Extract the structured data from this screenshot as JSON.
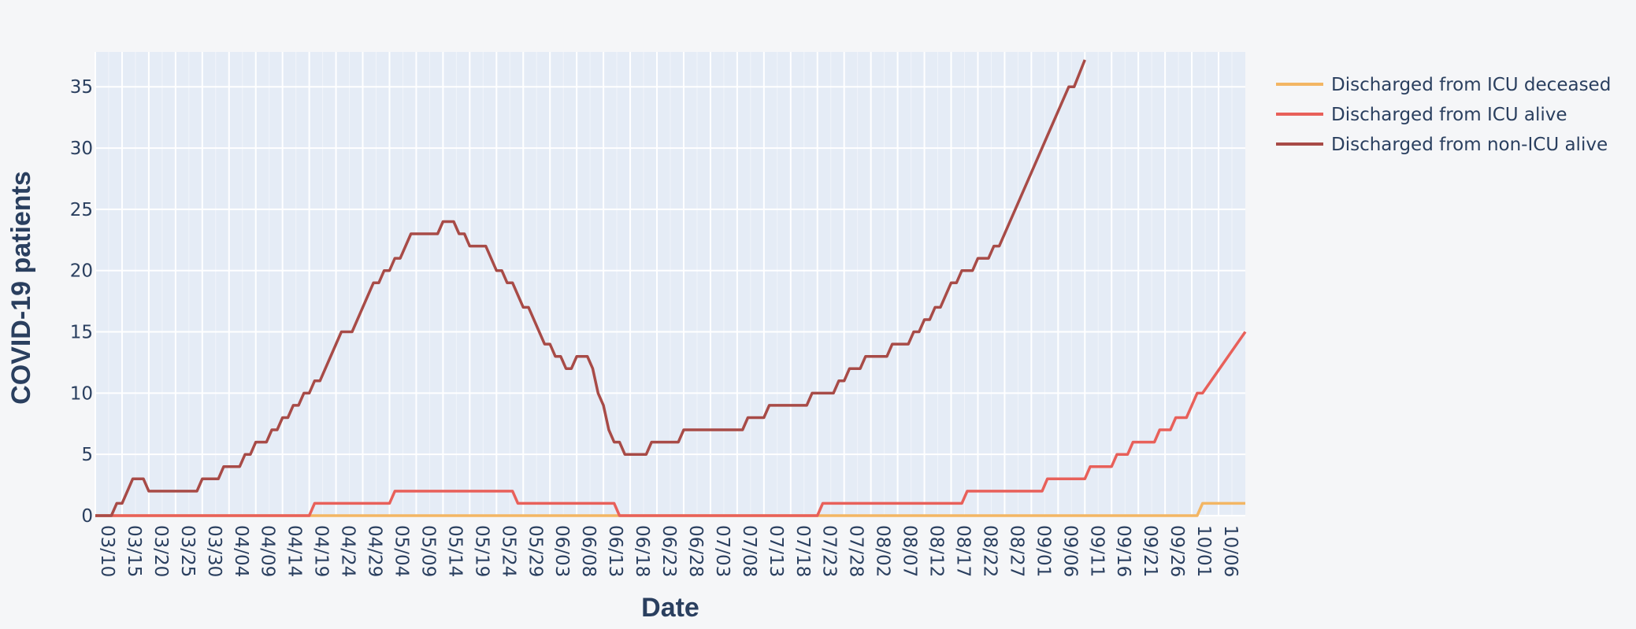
{
  "chart_data": {
    "type": "line",
    "xlabel": "Date",
    "ylabel": "COVID-19 patients",
    "x_start": "03/10",
    "x_ticks": [
      "03/10",
      "03/15",
      "03/20",
      "03/25",
      "03/30",
      "04/04",
      "04/09",
      "04/14",
      "04/19",
      "04/24",
      "04/29",
      "05/04",
      "05/09",
      "05/14",
      "05/19",
      "05/24",
      "05/29",
      "06/03",
      "06/08",
      "06/13",
      "06/18",
      "06/23",
      "06/28",
      "07/03",
      "07/08",
      "07/13",
      "07/18",
      "07/23",
      "07/28",
      "08/02",
      "08/07",
      "08/12",
      "08/17",
      "08/22",
      "08/27",
      "09/01",
      "09/06",
      "09/11",
      "09/16",
      "09/21",
      "09/26",
      "10/01",
      "10/06"
    ],
    "xlim": [
      "03/10",
      "10/11"
    ],
    "y_ticks": [
      0,
      5,
      10,
      15,
      20,
      25,
      30,
      35
    ],
    "ylim": [
      0,
      37.2
    ],
    "grid": true,
    "legend_position": "top-right",
    "series": [
      {
        "name": "Discharged from ICU deceased",
        "color": "#f3b664",
        "points": [
          [
            "03/10",
            0
          ],
          [
            "10/02",
            0
          ],
          [
            "10/03",
            1
          ],
          [
            "10/11",
            1
          ]
        ]
      },
      {
        "name": "Discharged from ICU alive",
        "color": "#e8605a",
        "points": [
          [
            "03/10",
            0
          ],
          [
            "04/19",
            0
          ],
          [
            "04/20",
            1
          ],
          [
            "05/04",
            1
          ],
          [
            "05/05",
            2
          ],
          [
            "05/27",
            2
          ],
          [
            "05/28",
            1
          ],
          [
            "06/15",
            1
          ],
          [
            "06/16",
            0
          ],
          [
            "07/23",
            0
          ],
          [
            "07/24",
            1
          ],
          [
            "08/19",
            1
          ],
          [
            "08/20",
            2
          ],
          [
            "09/03",
            2
          ],
          [
            "09/04",
            3
          ],
          [
            "09/11",
            3
          ],
          [
            "09/12",
            4
          ],
          [
            "09/16",
            4
          ],
          [
            "09/17",
            5
          ],
          [
            "09/19",
            5
          ],
          [
            "09/20",
            6
          ],
          [
            "09/24",
            6
          ],
          [
            "09/25",
            7
          ],
          [
            "09/27",
            7
          ],
          [
            "09/28",
            8
          ],
          [
            "09/30",
            8
          ],
          [
            "10/01",
            9
          ],
          [
            "10/02",
            10
          ],
          [
            "10/03",
            10
          ],
          [
            "10/11",
            15
          ]
        ]
      },
      {
        "name": "Discharged from non-ICU alive",
        "color": "#a84b47",
        "points": [
          [
            "03/10",
            0
          ],
          [
            "03/13",
            0
          ],
          [
            "03/14",
            1
          ],
          [
            "03/15",
            1
          ],
          [
            "03/17",
            3
          ],
          [
            "03/19",
            3
          ],
          [
            "03/20",
            2
          ],
          [
            "03/29",
            2
          ],
          [
            "03/30",
            3
          ],
          [
            "04/02",
            3
          ],
          [
            "04/03",
            4
          ],
          [
            "04/06",
            4
          ],
          [
            "04/07",
            5
          ],
          [
            "04/08",
            5
          ],
          [
            "04/09",
            6
          ],
          [
            "04/11",
            6
          ],
          [
            "04/12",
            7
          ],
          [
            "04/13",
            7
          ],
          [
            "04/14",
            8
          ],
          [
            "04/15",
            8
          ],
          [
            "04/16",
            9
          ],
          [
            "04/17",
            9
          ],
          [
            "04/18",
            10
          ],
          [
            "04/19",
            10
          ],
          [
            "04/20",
            11
          ],
          [
            "04/21",
            11
          ],
          [
            "04/25",
            15
          ],
          [
            "04/27",
            15
          ],
          [
            "05/01",
            19
          ],
          [
            "05/02",
            19
          ],
          [
            "05/03",
            20
          ],
          [
            "05/04",
            20
          ],
          [
            "05/05",
            21
          ],
          [
            "05/06",
            21
          ],
          [
            "05/08",
            23
          ],
          [
            "05/13",
            23
          ],
          [
            "05/14",
            24
          ],
          [
            "05/16",
            24
          ],
          [
            "05/17",
            23
          ],
          [
            "05/18",
            23
          ],
          [
            "05/19",
            22
          ],
          [
            "05/22",
            22
          ],
          [
            "05/24",
            20
          ],
          [
            "05/25",
            20
          ],
          [
            "05/26",
            19
          ],
          [
            "05/27",
            19
          ],
          [
            "05/29",
            17
          ],
          [
            "05/30",
            17
          ],
          [
            "06/02",
            14
          ],
          [
            "06/03",
            14
          ],
          [
            "06/04",
            13
          ],
          [
            "06/05",
            13
          ],
          [
            "06/06",
            12
          ],
          [
            "06/07",
            12
          ],
          [
            "06/08",
            13
          ],
          [
            "06/10",
            13
          ],
          [
            "06/11",
            12
          ],
          [
            "06/12",
            10
          ],
          [
            "06/13",
            9
          ],
          [
            "06/14",
            7
          ],
          [
            "06/15",
            6
          ],
          [
            "06/16",
            6
          ],
          [
            "06/17",
            5
          ],
          [
            "06/21",
            5
          ],
          [
            "06/22",
            6
          ],
          [
            "06/27",
            6
          ],
          [
            "06/28",
            7
          ],
          [
            "07/09",
            7
          ],
          [
            "07/10",
            8
          ],
          [
            "07/13",
            8
          ],
          [
            "07/14",
            9
          ],
          [
            "07/21",
            9
          ],
          [
            "07/22",
            10
          ],
          [
            "07/26",
            10
          ],
          [
            "07/27",
            11
          ],
          [
            "07/28",
            11
          ],
          [
            "07/29",
            12
          ],
          [
            "07/31",
            12
          ],
          [
            "08/01",
            13
          ],
          [
            "08/05",
            13
          ],
          [
            "08/06",
            14
          ],
          [
            "08/09",
            14
          ],
          [
            "08/10",
            15
          ],
          [
            "08/11",
            15
          ],
          [
            "08/12",
            16
          ],
          [
            "08/13",
            16
          ],
          [
            "08/14",
            17
          ],
          [
            "08/15",
            17
          ],
          [
            "08/17",
            19
          ],
          [
            "08/18",
            19
          ],
          [
            "08/19",
            20
          ],
          [
            "08/21",
            20
          ],
          [
            "08/22",
            21
          ],
          [
            "08/24",
            21
          ],
          [
            "08/25",
            22
          ],
          [
            "08/26",
            22
          ],
          [
            "09/02",
            29
          ],
          [
            "09/04",
            31
          ],
          [
            "09/08",
            35
          ],
          [
            "09/09",
            35
          ],
          [
            "09/11",
            37.2
          ]
        ]
      }
    ]
  }
}
